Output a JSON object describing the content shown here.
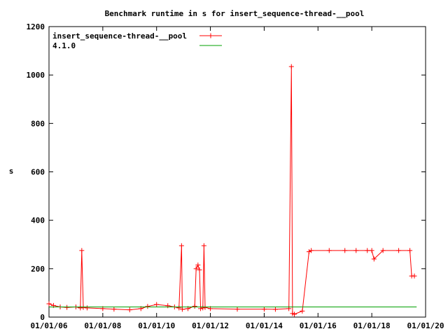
{
  "chart_data": {
    "type": "line",
    "title": "Benchmark runtime in s for insert_sequence-thread-__pool",
    "ylabel": "s",
    "xlabel": "",
    "ylim": [
      0,
      1200
    ],
    "xlim": [
      "2006-01-01",
      "2020-01-01"
    ],
    "grid": false,
    "legend_position": "top-left",
    "y_ticks": [
      "0",
      "200",
      "400",
      "600",
      "800",
      "1000",
      "1200"
    ],
    "x_ticks": [
      "01/01/06",
      "01/01/08",
      "01/01/10",
      "01/01/12",
      "01/01/14",
      "01/01/16",
      "01/01/18",
      "01/01/20"
    ],
    "series": [
      {
        "name": "insert_sequence-thread-__pool",
        "color": "#ff0000",
        "marker": "plus",
        "x": [
          "2006-01-01",
          "2006-03-01",
          "2006-06-01",
          "2006-09-01",
          "2007-01-01",
          "2007-03-01",
          "2007-03-20",
          "2007-04-10",
          "2007-06-01",
          "2008-01-01",
          "2008-06-01",
          "2009-01-01",
          "2009-06-01",
          "2009-09-01",
          "2010-01-01",
          "2010-06-01",
          "2010-09-01",
          "2010-11-01",
          "2010-12-05",
          "2010-12-15",
          "2011-03-01",
          "2011-06-01",
          "2011-06-20",
          "2011-07-15",
          "2011-08-05",
          "2011-08-20",
          "2011-09-20",
          "2011-10-05",
          "2011-10-20",
          "2012-01-01",
          "2013-01-01",
          "2014-01-01",
          "2014-06-01",
          "2014-12-01",
          "2015-01-05",
          "2015-01-20",
          "2015-02-15",
          "2015-06-01",
          "2015-09-01",
          "2015-10-01",
          "2016-06-01",
          "2017-01-01",
          "2017-06-01",
          "2017-11-01",
          "2018-01-01",
          "2018-02-01",
          "2018-06-01",
          "2019-01-01",
          "2019-06-01",
          "2019-06-25",
          "2019-08-01"
        ],
        "values": [
          55,
          48,
          42,
          40,
          42,
          38,
          275,
          40,
          38,
          35,
          33,
          30,
          35,
          44,
          52,
          47,
          42,
          38,
          295,
          32,
          35,
          45,
          200,
          215,
          195,
          35,
          38,
          295,
          40,
          35,
          33,
          33,
          32,
          35,
          1035,
          15,
          12,
          25,
          270,
          275,
          275,
          275,
          275,
          275,
          275,
          240,
          275,
          275,
          275,
          170,
          170
        ]
      },
      {
        "name": "4.1.0",
        "color": "#00a000",
        "marker": "none",
        "x": [
          "2006-01-01",
          "2019-09-01"
        ],
        "values": [
          42,
          42
        ]
      }
    ]
  }
}
